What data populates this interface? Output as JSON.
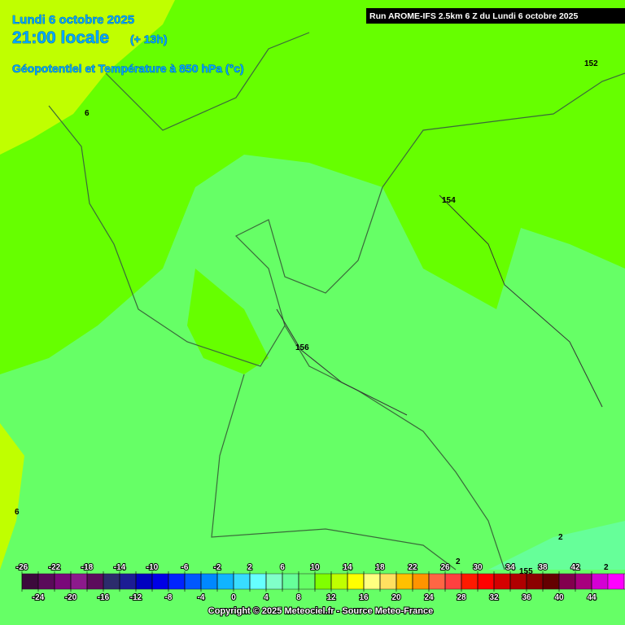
{
  "header": {
    "date": "Lundi 6 octobre 2025",
    "time": "21:00 locale",
    "offset": "(+ 13h)",
    "field": "Géopotentiel et Température à 850 hPa (°c)",
    "run": "Run AROME-IFS 2.5km 6 Z du Lundi 6 octobre 2025"
  },
  "map_labels": [
    "152",
    "154",
    "156",
    "6",
    "6",
    "2",
    "2",
    "2",
    "155"
  ],
  "legend": {
    "ticks": [
      -26,
      -24,
      -22,
      -20,
      -18,
      -16,
      -14,
      -12,
      -10,
      -8,
      -6,
      -4,
      -2,
      0,
      2,
      4,
      6,
      8,
      10,
      12,
      14,
      16,
      18,
      20,
      22,
      24,
      26,
      28,
      30,
      32,
      34,
      36,
      38,
      40,
      42,
      44
    ],
    "colors": [
      "#3c0a3c",
      "#5a0a5a",
      "#7a087a",
      "#8c1a8c",
      "#5c0c5c",
      "#2c2c6c",
      "#1c1c94",
      "#0000c0",
      "#0000e6",
      "#0024ff",
      "#0058ff",
      "#0088ff",
      "#10b4ff",
      "#38dcff",
      "#66ffff",
      "#80ffc8",
      "#66ff99",
      "#66ff66",
      "#80ff00",
      "#c0ff00",
      "#ffff00",
      "#ffff80",
      "#ffe060",
      "#ffc000",
      "#ff9400",
      "#ff6644",
      "#ff4040",
      "#ff1a00",
      "#ff0000",
      "#d40000",
      "#b00000",
      "#8c0000",
      "#640000",
      "#82004e",
      "#a8007e",
      "#d400d4",
      "#ff00ff",
      "#ff88ff"
    ]
  },
  "footer": {
    "copyright": "Copyright © 2025 Meteociel.fr - Source Meteo-France"
  }
}
